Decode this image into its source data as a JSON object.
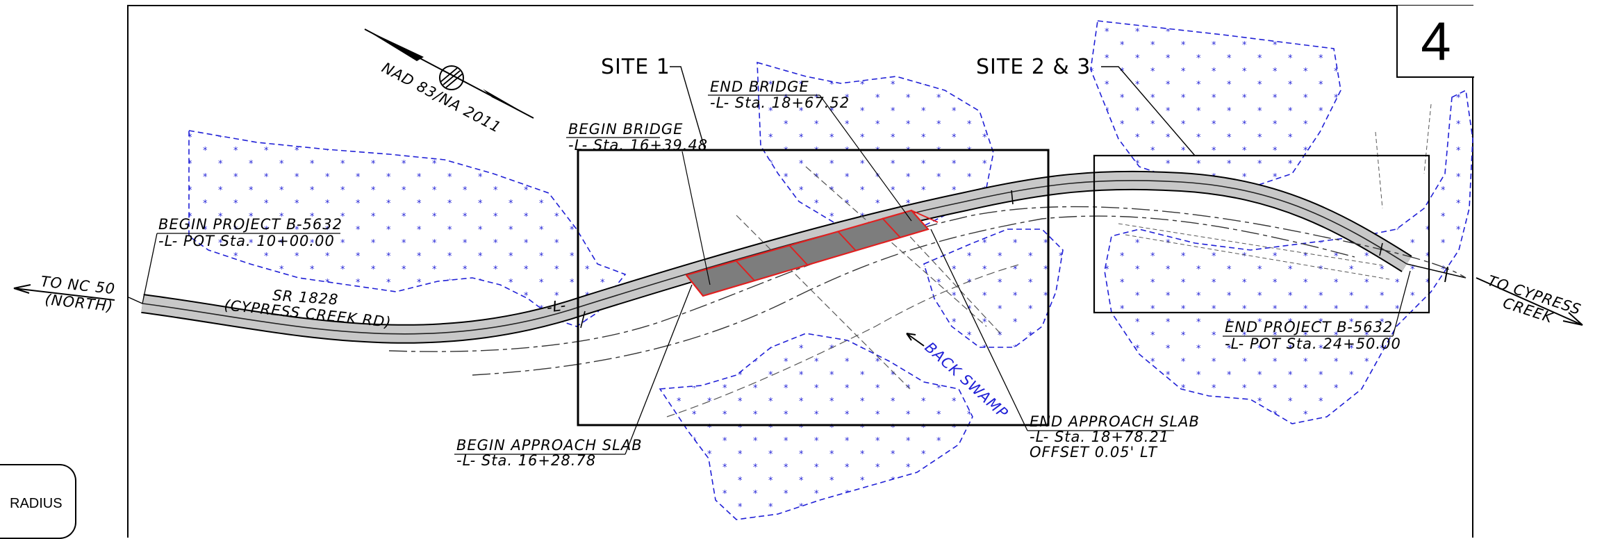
{
  "sheet_number": "4",
  "radius_tab": "RADIUS",
  "north_arrow": "NAD 83/NA 2011",
  "sites": {
    "site1": "SITE 1",
    "site23": "SITE 2 & 3"
  },
  "directions": {
    "west_1": "TO NC 50",
    "west_2": "(NORTH)",
    "east_1": "TO CYPRESS",
    "east_2": "CREEK"
  },
  "road": {
    "name": "SR 1828",
    "alias": "(CYPRESS CREEK RD)",
    "alignment": "-L-"
  },
  "begin_project": {
    "line1": "BEGIN PROJECT B-5632",
    "line2": "-L- POT Sta. 10+00.00"
  },
  "end_project": {
    "line1": "END PROJECT B-5632",
    "line2": "-L- POT Sta. 24+50.00"
  },
  "begin_bridge": {
    "line1": "BEGIN BRIDGE",
    "line2": "-L- Sta. 16+39.48"
  },
  "end_bridge": {
    "line1": "END BRIDGE",
    "line2": "-L- Sta. 18+67.52"
  },
  "begin_slab": {
    "line1": "BEGIN APPROACH SLAB",
    "line2": "-L- Sta. 16+28.78"
  },
  "end_slab": {
    "line1": "END APPROACH SLAB",
    "line2": "-L- Sta. 18+78.21",
    "line3": "OFFSET 0.05' LT"
  },
  "swamp": "BACK SWAMP",
  "colors": {
    "wetland": "#1f1fd6",
    "bridge": "#e02020",
    "pavement": "#c8c8c8"
  }
}
